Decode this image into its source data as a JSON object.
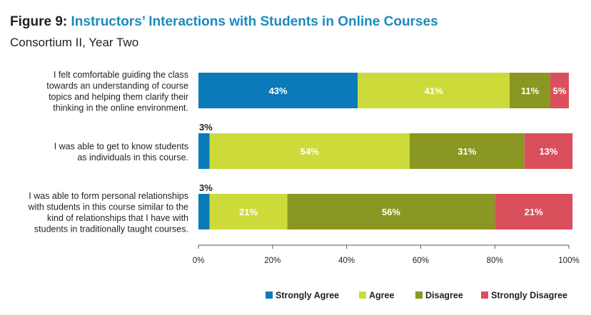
{
  "figure_label": "Figure 9:",
  "figure_title": "Instructors’ Interactions with Students in Online Courses",
  "subtitle": "Consortium II, Year Two",
  "chart_data": {
    "type": "bar",
    "orientation": "horizontal",
    "stacked": true,
    "categories": [
      [
        "I felt comfortable guiding the class",
        "towards an understanding of course",
        "topics and helping them clarify their",
        "thinking in the online environment."
      ],
      [
        "I was able to get to know students",
        "as individuals in this course."
      ],
      [
        "I was able to form personal relationships",
        "with students in this course similar to the",
        "kind of relationships that I have with",
        "students in traditionally taught courses."
      ]
    ],
    "series": [
      {
        "name": "Strongly Agree",
        "color": "#0a7ab8",
        "values": [
          43,
          3,
          3
        ]
      },
      {
        "name": "Agree",
        "color": "#cddb3a",
        "values": [
          41,
          54,
          21
        ]
      },
      {
        "name": "Disagree",
        "color": "#8a9722",
        "values": [
          11,
          31,
          56
        ]
      },
      {
        "name": "Strongly Disagree",
        "color": "#d94f5c",
        "values": [
          5,
          13,
          21
        ]
      }
    ],
    "xlim": [
      0,
      100
    ],
    "xticks": [
      "0%",
      "20%",
      "40%",
      "60%",
      "80%",
      "100%"
    ],
    "value_suffix": "%",
    "legend_position": "bottom-right",
    "grid": false
  }
}
